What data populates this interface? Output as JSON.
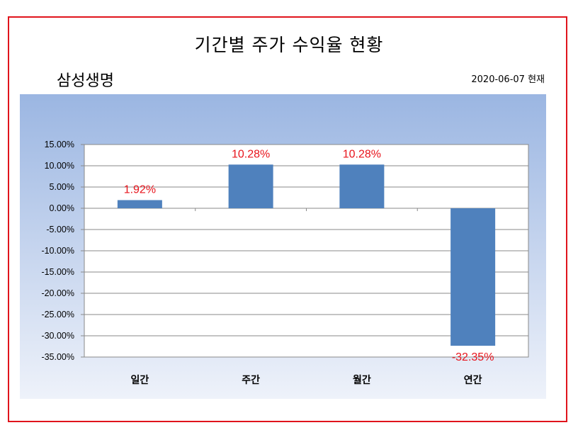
{
  "header": {
    "title": "기간별 주가 수익율 현황",
    "company": "삼성생명",
    "as_of": "2020-06-07 현재"
  },
  "colors": {
    "bar": "#4f81bd",
    "data_label": "#e8141c",
    "frame": "#e0141c"
  },
  "chart_data": {
    "type": "bar",
    "title": "기간별 주가 수익율 현황",
    "categories": [
      "일간",
      "주간",
      "월간",
      "연간"
    ],
    "values": [
      1.92,
      10.28,
      10.28,
      -32.35
    ],
    "data_labels": [
      "1.92%",
      "10.28%",
      "10.28%",
      "-32.35%"
    ],
    "ylim": [
      -35,
      15
    ],
    "y_ticks": [
      15,
      10,
      5,
      0,
      -5,
      -10,
      -15,
      -20,
      -25,
      -30,
      -35
    ],
    "y_tick_labels": [
      "15.00%",
      "10.00%",
      "5.00%",
      "0.00%",
      "-5.00%",
      "-10.00%",
      "-15.00%",
      "-20.00%",
      "-25.00%",
      "-30.00%",
      "-35.00%"
    ],
    "grid": true,
    "legend": "none"
  }
}
